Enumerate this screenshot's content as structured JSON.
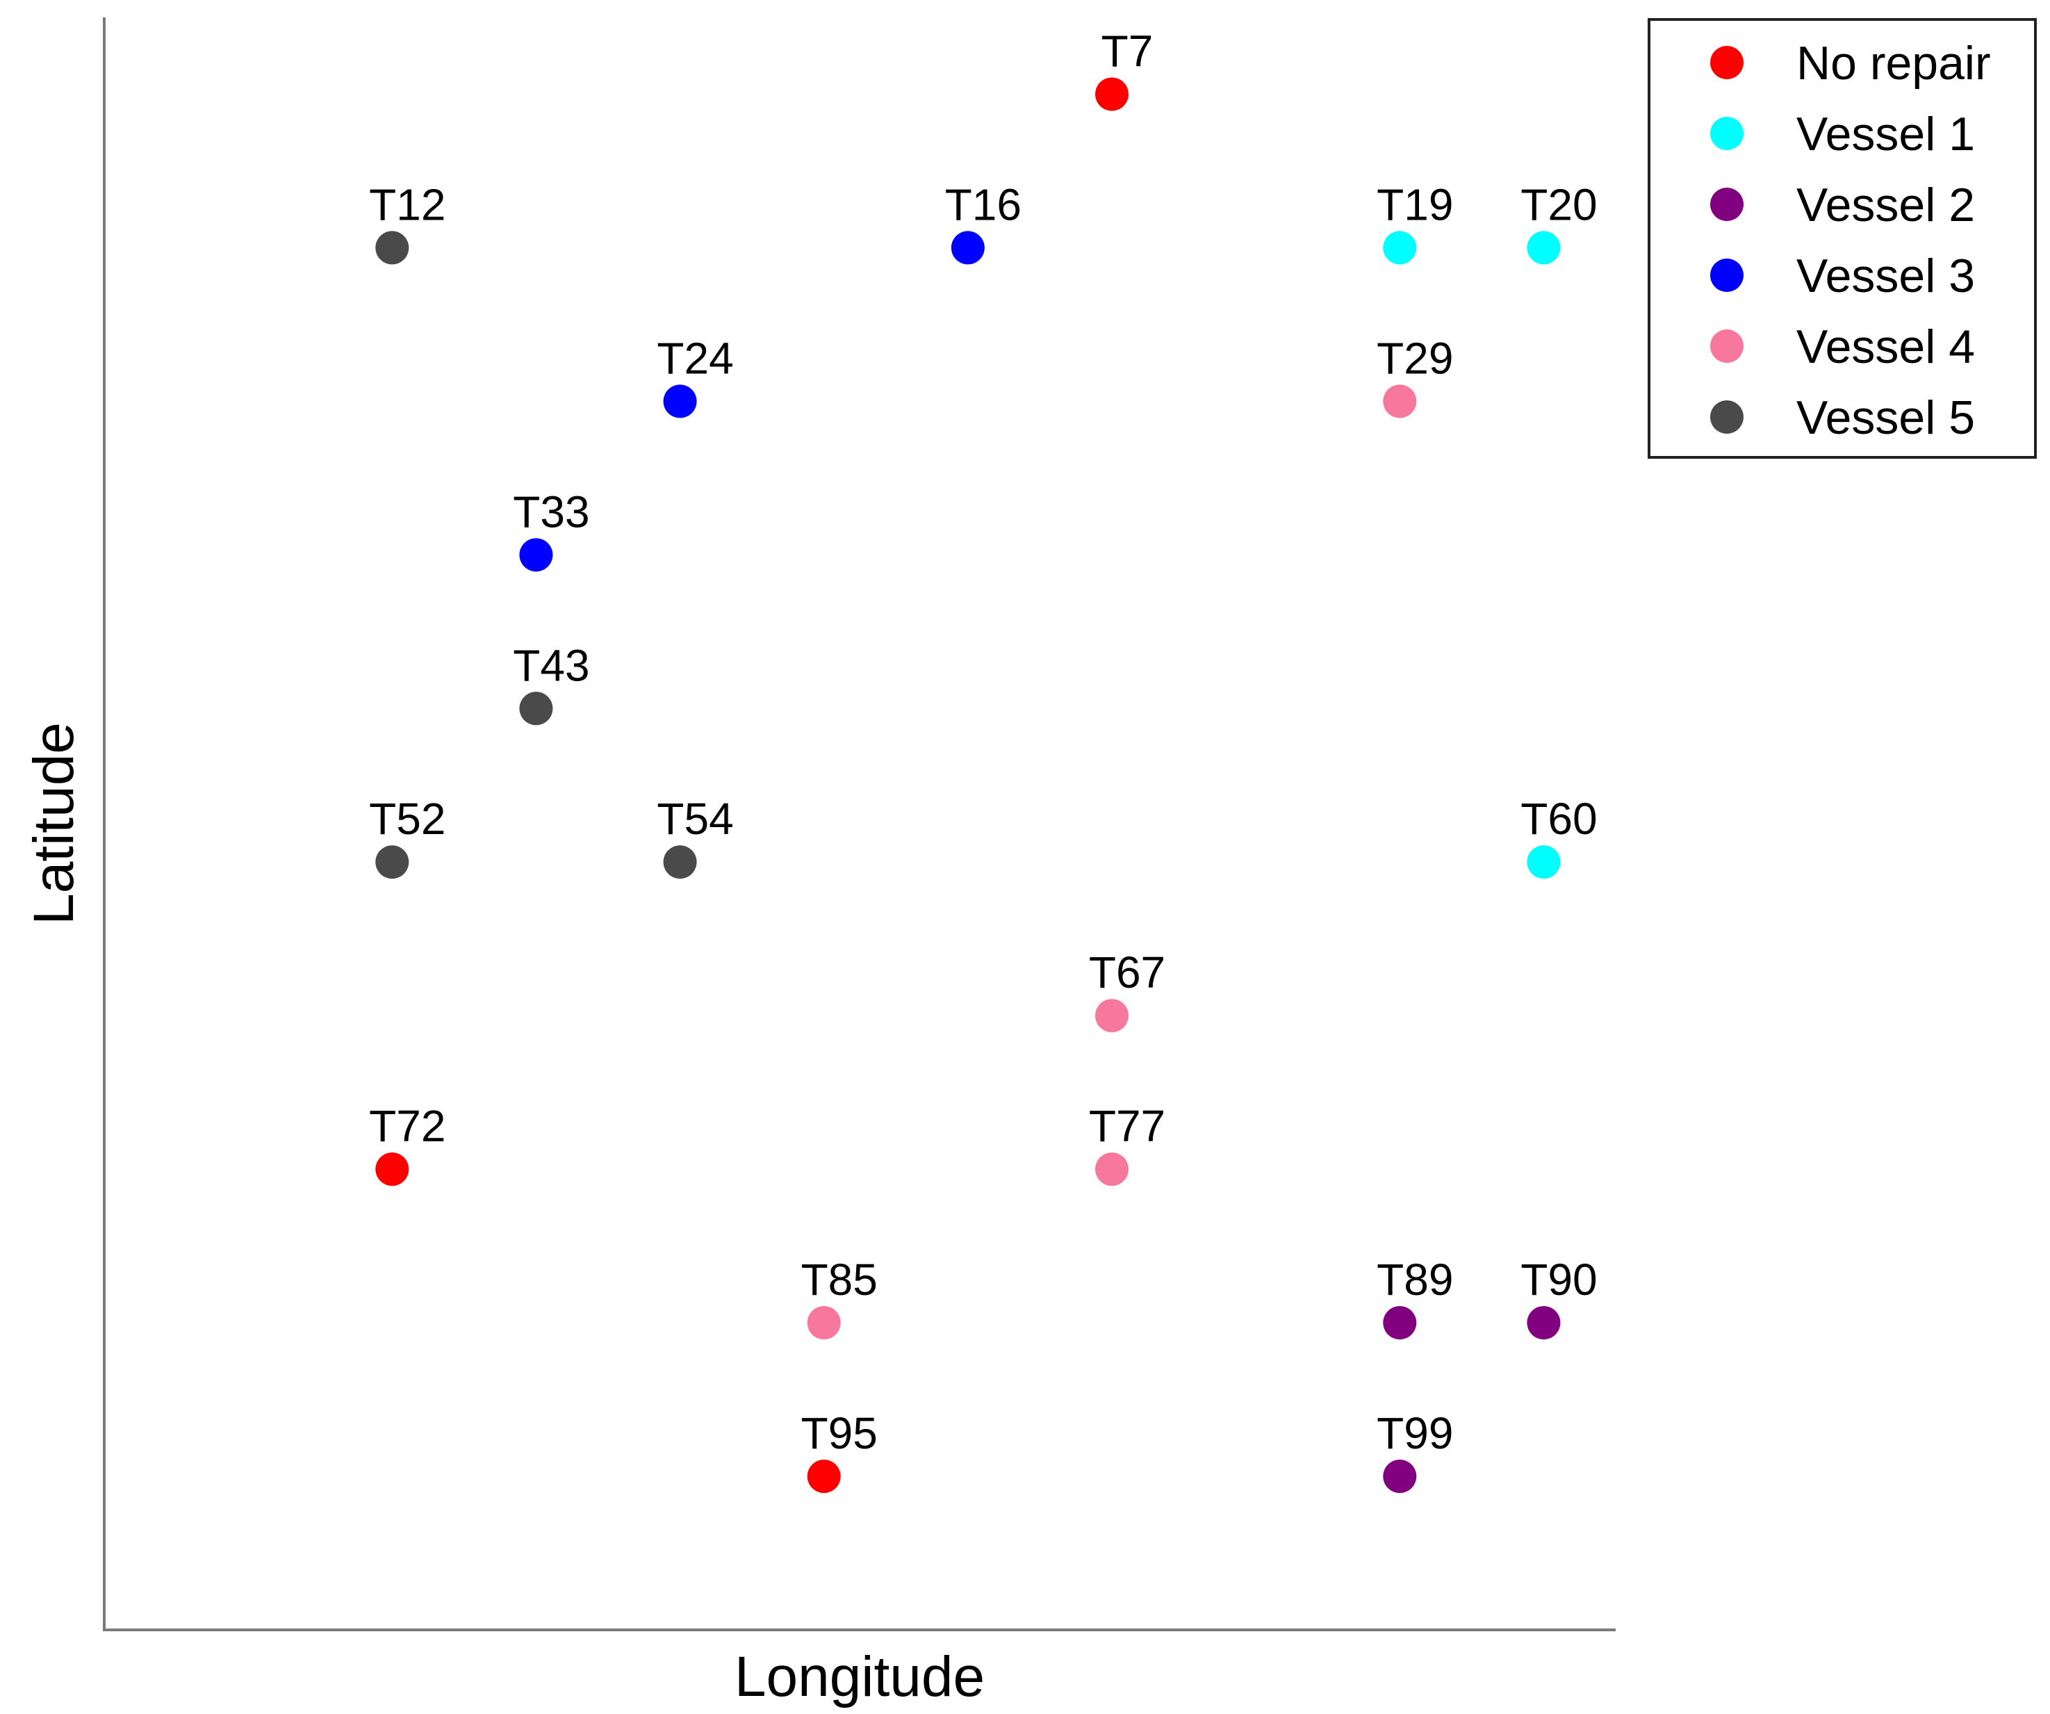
{
  "chart_data": {
    "type": "scatter",
    "title": "",
    "xlabel": "Longitude",
    "ylabel": "Latitude",
    "xlim": [
      0,
      10.5
    ],
    "ylim": [
      0,
      10.5
    ],
    "grid": false,
    "legend_position": "top-right outside",
    "categories": [
      {
        "name": "No repair",
        "color": "#ff0000"
      },
      {
        "name": "Vessel 1",
        "color": "#00ffff"
      },
      {
        "name": "Vessel 2",
        "color": "#800080"
      },
      {
        "name": "Vessel 3",
        "color": "#0000ff"
      },
      {
        "name": "Vessel 4",
        "color": "#f8779d"
      },
      {
        "name": "Vessel 5",
        "color": "#4a4a4a"
      }
    ],
    "points": [
      {
        "label": "T7",
        "x": 7,
        "y": 10,
        "group": "No repair"
      },
      {
        "label": "T12",
        "x": 2,
        "y": 9,
        "group": "Vessel 5"
      },
      {
        "label": "T16",
        "x": 6,
        "y": 9,
        "group": "Vessel 3"
      },
      {
        "label": "T19",
        "x": 9,
        "y": 9,
        "group": "Vessel 1"
      },
      {
        "label": "T20",
        "x": 10,
        "y": 9,
        "group": "Vessel 1"
      },
      {
        "label": "T24",
        "x": 4,
        "y": 8,
        "group": "Vessel 3"
      },
      {
        "label": "T29",
        "x": 9,
        "y": 8,
        "group": "Vessel 4"
      },
      {
        "label": "T33",
        "x": 3,
        "y": 7,
        "group": "Vessel 3"
      },
      {
        "label": "T43",
        "x": 3,
        "y": 6,
        "group": "Vessel 5"
      },
      {
        "label": "T52",
        "x": 2,
        "y": 5,
        "group": "Vessel 5"
      },
      {
        "label": "T54",
        "x": 4,
        "y": 5,
        "group": "Vessel 5"
      },
      {
        "label": "T60",
        "x": 10,
        "y": 5,
        "group": "Vessel 1"
      },
      {
        "label": "T67",
        "x": 7,
        "y": 4,
        "group": "Vessel 4"
      },
      {
        "label": "T72",
        "x": 2,
        "y": 3,
        "group": "No repair"
      },
      {
        "label": "T77",
        "x": 7,
        "y": 3,
        "group": "Vessel 4"
      },
      {
        "label": "T85",
        "x": 5,
        "y": 2,
        "group": "Vessel 4"
      },
      {
        "label": "T89",
        "x": 9,
        "y": 2,
        "group": "Vessel 2"
      },
      {
        "label": "T90",
        "x": 10,
        "y": 2,
        "group": "Vessel 2"
      },
      {
        "label": "T95",
        "x": 5,
        "y": 1,
        "group": "No repair"
      },
      {
        "label": "T99",
        "x": 9,
        "y": 1,
        "group": "Vessel 2"
      }
    ]
  }
}
